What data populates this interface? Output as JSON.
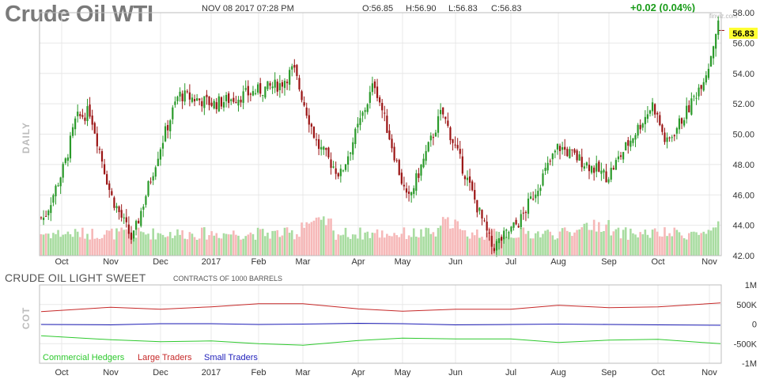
{
  "header": {
    "title": "Crude Oil WTI",
    "datetime": "NOV 08 2017 07:28 PM",
    "open": "O:56.85",
    "high": "H:56.90",
    "low": "L:56.83",
    "close": "C:56.83",
    "change": "+0.02 (0.04%)",
    "watermark": "finviz.com"
  },
  "cot": {
    "title": "CRUDE OIL LIGHT SWEET",
    "subtitle": "CONTRACTS OF 1000 BARRELS",
    "legend": [
      "Commercial Hedgers",
      "Large Traders",
      "Small Traders"
    ]
  },
  "colors": {
    "up": "#2a9a2a",
    "down": "#9b1414",
    "vol_up": "#a8dca0",
    "vol_down": "#f6b8b8",
    "commercial": "#2ec92e",
    "large": "#c62828",
    "small": "#2222bb",
    "price_badge": "#ffff33"
  },
  "chart_data": [
    {
      "type": "candlestick",
      "title": "Crude Oil WTI",
      "ylabel": "DAILY",
      "last_price": "56.83",
      "categories": [
        "Oct",
        "Nov",
        "Dec",
        "2017",
        "Feb",
        "Mar",
        "Apr",
        "May",
        "Jun",
        "Jul",
        "Aug",
        "Sep",
        "Oct",
        "Nov"
      ],
      "y_ticks": [
        "42.00",
        "44.00",
        "46.00",
        "48.00",
        "50.00",
        "52.00",
        "54.00",
        "56.00",
        "58.00"
      ],
      "ylim": [
        42,
        58
      ],
      "grid": true,
      "series": [
        {
          "name": "Close",
          "x": [
            "2016-09-20",
            "2016-10-03",
            "2016-10-10",
            "2016-10-19",
            "2016-11-01",
            "2016-11-14",
            "2016-11-30",
            "2016-12-12",
            "2017-01-03",
            "2017-01-20",
            "2017-02-15",
            "2017-02-23",
            "2017-03-09",
            "2017-03-22",
            "2017-04-12",
            "2017-05-04",
            "2017-05-24",
            "2017-06-21",
            "2017-07-07",
            "2017-08-01",
            "2017-08-31",
            "2017-09-28",
            "2017-10-06",
            "2017-10-20",
            "2017-10-31",
            "2017-11-06",
            "2017-11-08"
          ],
          "values": [
            44.5,
            48.0,
            51.0,
            51.5,
            46.0,
            43.0,
            48.9,
            52.6,
            52.0,
            52.5,
            53.3,
            54.3,
            49.3,
            47.3,
            53.4,
            45.5,
            51.5,
            42.5,
            44.3,
            49.2,
            47.2,
            52.0,
            49.3,
            51.8,
            54.3,
            57.3,
            56.83
          ]
        }
      ]
    },
    {
      "type": "line",
      "title": "CRUDE OIL LIGHT SWEET",
      "subtitle": "CONTRACTS OF 1000 BARRELS",
      "ylabel": "COT",
      "y_ticks": [
        "1M",
        "500K",
        "0",
        "-500K",
        "-1M"
      ],
      "ylim": [
        -1000000,
        1000000
      ],
      "categories": [
        "Oct",
        "Nov",
        "Dec",
        "2017",
        "Feb",
        "Mar",
        "Apr",
        "May",
        "Jun",
        "Jul",
        "Aug",
        "Sep",
        "Oct",
        "Nov"
      ],
      "series": [
        {
          "name": "Commercial Hedgers",
          "values": [
            -300000,
            -400000,
            -450000,
            -430000,
            -500000,
            -540000,
            -420000,
            -360000,
            -380000,
            -380000,
            -470000,
            -410000,
            -390000,
            -500000
          ]
        },
        {
          "name": "Large Traders",
          "values": [
            320000,
            430000,
            380000,
            440000,
            520000,
            520000,
            390000,
            330000,
            380000,
            380000,
            480000,
            420000,
            440000,
            540000
          ]
        },
        {
          "name": "Small Traders",
          "values": [
            -10000,
            -20000,
            10000,
            10000,
            -10000,
            0,
            20000,
            10000,
            -20000,
            -10000,
            0,
            -10000,
            -20000,
            -30000
          ]
        }
      ]
    }
  ]
}
